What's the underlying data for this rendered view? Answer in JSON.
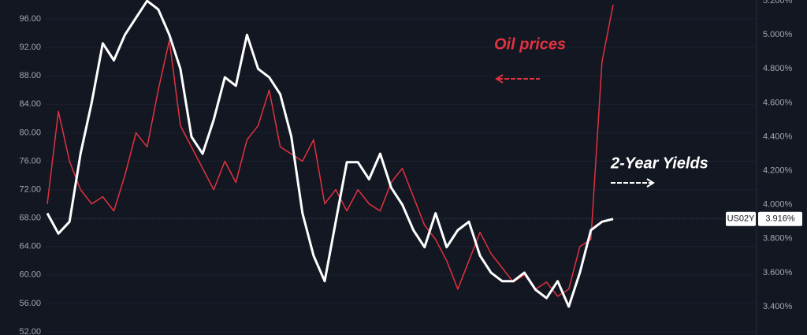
{
  "chart_data": {
    "type": "line",
    "series": [
      {
        "name": "Oil prices",
        "color": "#e0323f",
        "axis": "y",
        "values": [
          70,
          83,
          76,
          72,
          70,
          71,
          69,
          74,
          80,
          78,
          86,
          93,
          81,
          78,
          75,
          72,
          76,
          73,
          79,
          81,
          86,
          78,
          77,
          76,
          79,
          70,
          72,
          69,
          72,
          70,
          69,
          73,
          75,
          71,
          67,
          65,
          62,
          58,
          62,
          66,
          63,
          61,
          59,
          60,
          58,
          59,
          57,
          58,
          64,
          65,
          90,
          98
        ]
      },
      {
        "name": "2-Year Yields",
        "color": "#ffffff",
        "axis": "y2",
        "values": [
          3.95,
          3.83,
          3.9,
          4.3,
          4.6,
          4.95,
          4.85,
          5.0,
          5.1,
          5.2,
          5.15,
          5.0,
          4.8,
          4.4,
          4.3,
          4.5,
          4.75,
          4.7,
          5.0,
          4.8,
          4.75,
          4.65,
          4.4,
          3.95,
          3.7,
          3.55,
          3.9,
          4.25,
          4.25,
          4.15,
          4.3,
          4.1,
          4.0,
          3.85,
          3.75,
          3.95,
          3.75,
          3.85,
          3.9,
          3.7,
          3.6,
          3.55,
          3.55,
          3.6,
          3.5,
          3.45,
          3.55,
          3.4,
          3.6,
          3.85,
          3.9,
          3.916
        ]
      }
    ],
    "ylim": [
      51.56,
      98.66
    ],
    "yticks": [
      {
        "value": 52,
        "label": "52.00"
      },
      {
        "value": 56,
        "label": "56.00"
      },
      {
        "value": 60,
        "label": "60.00"
      },
      {
        "value": 64,
        "label": "64.00"
      },
      {
        "value": 68,
        "label": "68.00"
      },
      {
        "value": 72,
        "label": "72.00"
      },
      {
        "value": 76,
        "label": "76.00"
      },
      {
        "value": 80,
        "label": "80.00"
      },
      {
        "value": 84,
        "label": "84.00"
      },
      {
        "value": 88,
        "label": "88.00"
      },
      {
        "value": 92,
        "label": "92.00"
      },
      {
        "value": 96,
        "label": "96.00"
      }
    ],
    "y2lim": [
      3.233,
      5.205
    ],
    "y2ticks": [
      {
        "value": 3.4,
        "label": "3.400%"
      },
      {
        "value": 3.6,
        "label": "3.600%"
      },
      {
        "value": 3.8,
        "label": "3.800%"
      },
      {
        "value": 4.0,
        "label": "4.000%"
      },
      {
        "value": 4.2,
        "label": "4.200%"
      },
      {
        "value": 4.4,
        "label": "4.400%"
      },
      {
        "value": 4.6,
        "label": "4.600%"
      },
      {
        "value": 4.8,
        "label": "4.800%"
      },
      {
        "value": 5.0,
        "label": "5.000%"
      },
      {
        "value": 5.2,
        "label": "5.200%"
      }
    ],
    "symbol": "US02Y",
    "last_value": {
      "value": 3.916,
      "label": "3.916%"
    }
  }
}
